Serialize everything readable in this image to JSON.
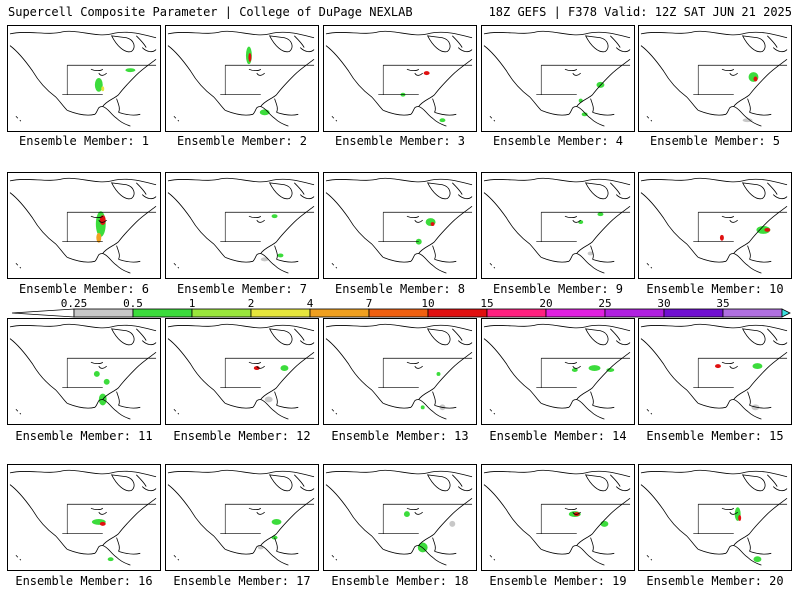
{
  "header": {
    "title": "Supercell Composite Parameter | College of DuPage NEXLAB",
    "run_info": "18Z GEFS | F378 Valid: 12Z SAT JUN 21 2025"
  },
  "members": [
    {
      "label": "Ensemble Member: 1"
    },
    {
      "label": "Ensemble Member: 2"
    },
    {
      "label": "Ensemble Member: 3"
    },
    {
      "label": "Ensemble Member: 4"
    },
    {
      "label": "Ensemble Member: 5"
    },
    {
      "label": "Ensemble Member: 6"
    },
    {
      "label": "Ensemble Member: 7"
    },
    {
      "label": "Ensemble Member: 8"
    },
    {
      "label": "Ensemble Member: 9"
    },
    {
      "label": "Ensemble Member: 10"
    },
    {
      "label": "Ensemble Member: 11"
    },
    {
      "label": "Ensemble Member: 12"
    },
    {
      "label": "Ensemble Member: 13"
    },
    {
      "label": "Ensemble Member: 14"
    },
    {
      "label": "Ensemble Member: 15"
    },
    {
      "label": "Ensemble Member: 16"
    },
    {
      "label": "Ensemble Member: 17"
    },
    {
      "label": "Ensemble Member: 18"
    },
    {
      "label": "Ensemble Member: 19"
    },
    {
      "label": "Ensemble Member: 20"
    }
  ],
  "colorbar": {
    "labels": [
      "0.25",
      "0.5",
      "1",
      "2",
      "4",
      "7",
      "10",
      "15",
      "20",
      "25",
      "30",
      "35"
    ],
    "colors": [
      "#c8c8c8",
      "#3cdc3c",
      "#9ae63c",
      "#e6e63c",
      "#f0a020",
      "#f06010",
      "#e01010",
      "#ff2080",
      "#e020e0",
      "#b020e0",
      "#7010d0",
      "#b070e0",
      "#40e0e0"
    ]
  }
}
